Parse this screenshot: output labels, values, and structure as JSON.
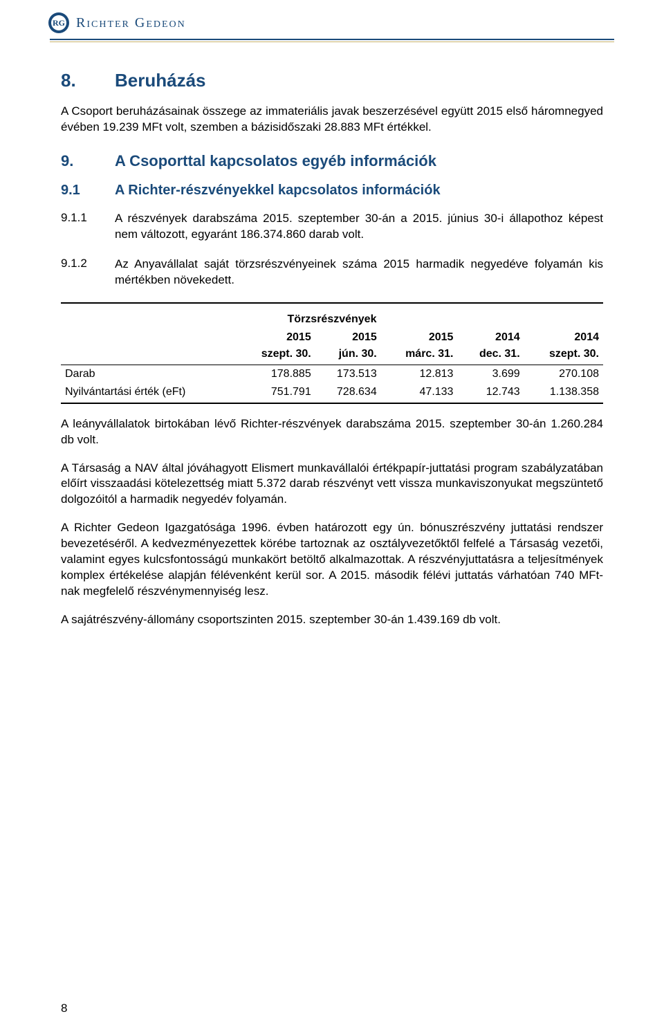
{
  "header": {
    "logo_text": "RG",
    "company_name": "Richter Gedeon"
  },
  "section8": {
    "number": "8.",
    "title": "Beruházás",
    "body": "A Csoport beruházásainak összege az immateriális javak beszerzésével együtt 2015 első háromnegyed évében 19.239 MFt volt, szemben a bázisidőszaki 28.883 MFt értékkel."
  },
  "section9": {
    "number": "9.",
    "title": "A Csoporttal kapcsolatos egyéb információk"
  },
  "section9_1": {
    "number": "9.1",
    "title": "A Richter-részvényekkel kapcsolatos információk"
  },
  "item9_1_1": {
    "number": "9.1.1",
    "text": "A részvények darabszáma 2015. szeptember 30-án a 2015. június 30-i állapothoz képest nem változott, egyaránt 186.374.860 darab volt."
  },
  "item9_1_2": {
    "number": "9.1.2",
    "text": "Az Anyavállalat saját törzsrészvényeinek száma 2015 harmadik negyedéve folyamán kis mértékben növekedett."
  },
  "table": {
    "title": "Törzsrészvények",
    "years": [
      "",
      "2015",
      "2015",
      "2015",
      "2014",
      "2014"
    ],
    "dates": [
      "",
      "szept. 30.",
      "jún. 30.",
      "márc. 31.",
      "dec. 31.",
      "szept. 30."
    ],
    "rows": [
      {
        "label": "Darab",
        "values": [
          "178.885",
          "173.513",
          "12.813",
          "3.699",
          "270.108"
        ]
      },
      {
        "label": "Nyilvántartási érték (eFt)",
        "values": [
          "751.791",
          "728.634",
          "47.133",
          "12.743",
          "1.138.358"
        ]
      }
    ]
  },
  "paragraphs": {
    "p1": "A leányvállalatok birtokában lévő Richter-részvények darabszáma 2015. szeptember 30-án 1.260.284 db volt.",
    "p2": "A Társaság a NAV által jóváhagyott Elismert munkavállalói értékpapír-juttatási program szabályzatában előírt visszaadási kötelezettség miatt 5.372 darab részvényt vett vissza munkaviszonyukat megszüntető dolgozóitól a harmadik negyedév folyamán.",
    "p3": "A Richter Gedeon Igazgatósága 1996. évben határozott egy ún. bónuszrészvény juttatási rendszer bevezetéséről. A kedvezményezettek körébe tartoznak az osztályvezetőktől felfelé a Társaság vezetői, valamint egyes kulcsfontosságú munkakört betöltő alkalmazottak. A részvényjuttatásra a teljesítmények komplex értékelése alapján félévenként kerül sor. A 2015. második félévi juttatás várhatóan 740 MFt-nak megfelelő részvénymennyiség lesz.",
    "p4": "A sajátrészvény-állomány csoportszinten 2015. szeptember 30-án 1.439.169 db volt."
  },
  "page_number": "8"
}
